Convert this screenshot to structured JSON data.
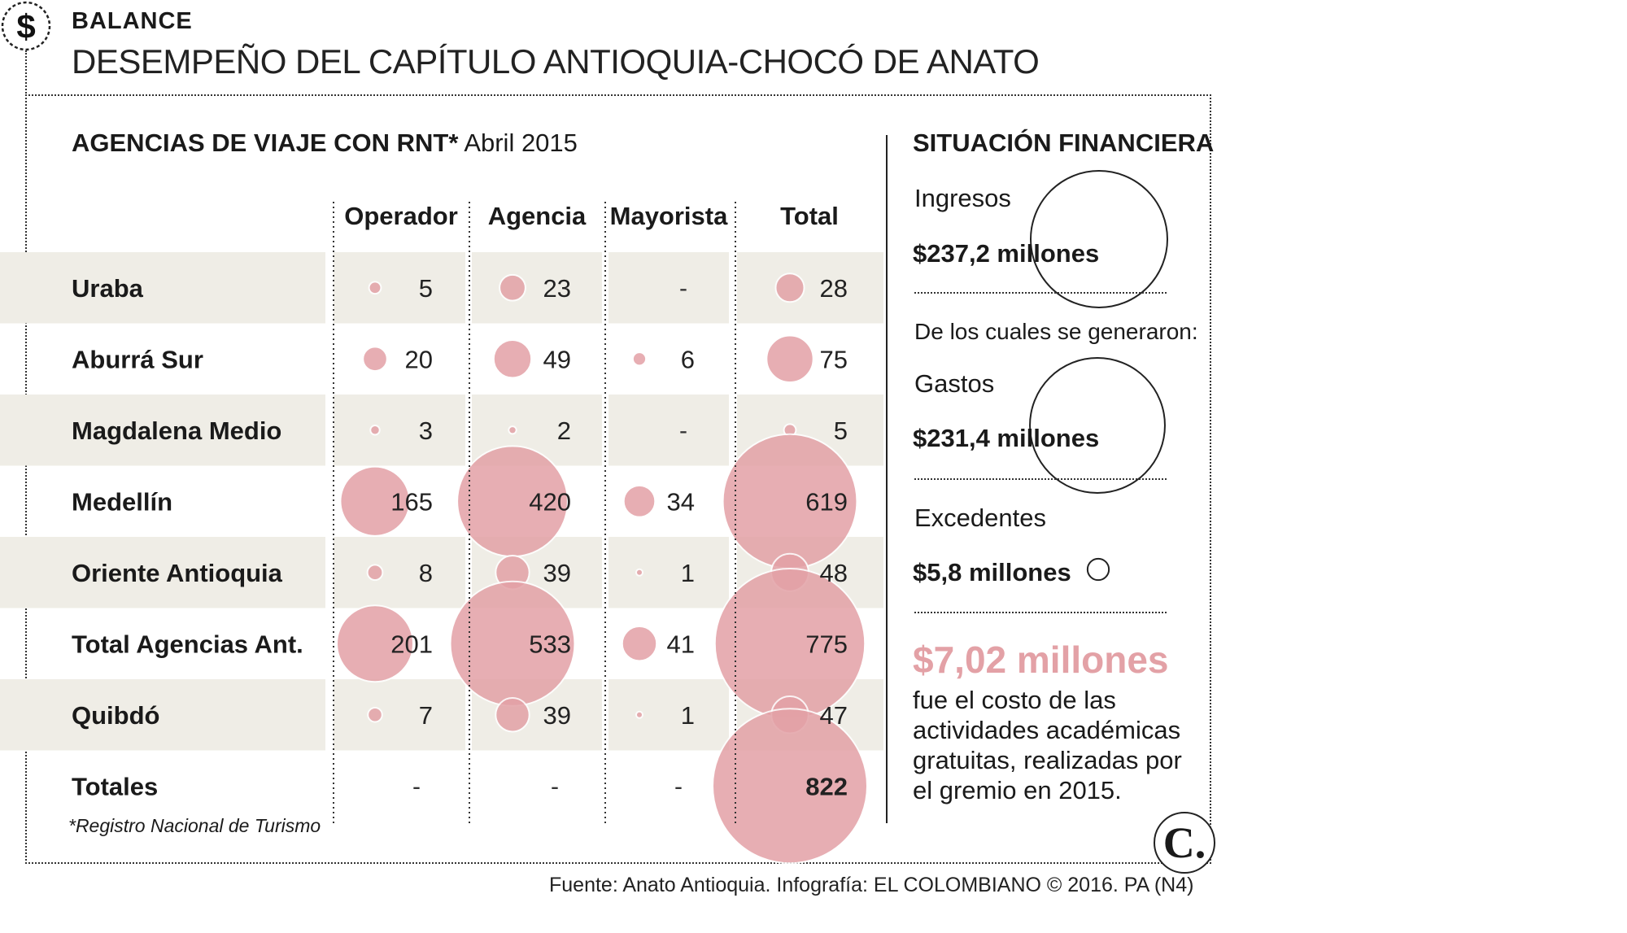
{
  "header": {
    "icon": "dollar-icon",
    "icon_glyph": "$",
    "kicker": "BALANCE",
    "title": "DESEMPEÑO DEL CAPÍTULO ANTIOQUIA-CHOCÓ DE ANATO"
  },
  "colors": {
    "bubble": "#e3a1a6",
    "bubble_stroke": "#ffffff",
    "row_band": "#efede6",
    "accent_text": "#e3a1a6"
  },
  "chart_data": {
    "type": "table",
    "title_bold": "AGENCIAS DE VIAJE CON RNT*",
    "title_date": "Abril 2015",
    "columns": [
      "Operador",
      "Agencia",
      "Mayorista",
      "Total"
    ],
    "rows": [
      {
        "label": "Uraba",
        "values": [
          5,
          23,
          null,
          28
        ]
      },
      {
        "label": "Aburrá Sur",
        "values": [
          20,
          49,
          6,
          75
        ]
      },
      {
        "label": "Magdalena Medio",
        "values": [
          3,
          2,
          null,
          5
        ]
      },
      {
        "label": "Medellín",
        "values": [
          165,
          420,
          34,
          619
        ]
      },
      {
        "label": "Oriente Antioquia",
        "values": [
          8,
          39,
          1,
          48
        ]
      },
      {
        "label": "Total Agencias Ant.",
        "values": [
          201,
          533,
          41,
          775
        ]
      },
      {
        "label": "Quibdó",
        "values": [
          7,
          39,
          1,
          47
        ]
      },
      {
        "label": "Totales",
        "values": [
          null,
          null,
          null,
          822
        ]
      }
    ],
    "empty_marker": "-",
    "encoding": "bubble area proportional to value"
  },
  "footnote": "*Registro Nacional de Turismo",
  "financial": {
    "title": "SITUACIÓN FINANCIERA",
    "ingresos_label": "Ingresos",
    "ingresos_value": "$237,2 millones",
    "ingresos_amount": 237.2,
    "sub_label": "De los cuales se generaron:",
    "gastos_label": "Gastos",
    "gastos_value": "$231,4 millones",
    "gastos_amount": 231.4,
    "excedentes_label": "Excedentes",
    "excedentes_value": "$5,8 millones",
    "excedentes_amount": 5.8
  },
  "highlight": {
    "amount": "$7,02 millones",
    "text": "fue el costo de las actividades académicas gratuitas, realizadas por el gremio en 2015."
  },
  "source": "Fuente: Anato Antioquia. Infografía: EL COLOMBIANO © 2016. PA (N4)",
  "logo_text": "C."
}
